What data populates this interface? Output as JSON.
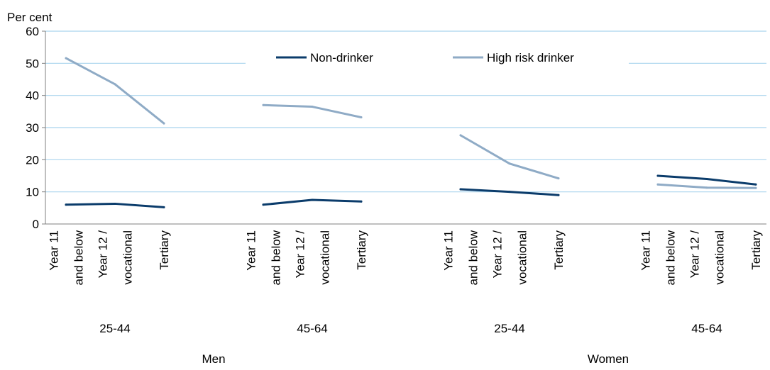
{
  "chart_data": {
    "type": "line",
    "ylabel": "Per cent",
    "ylim": [
      0,
      60
    ],
    "yticks": [
      "0",
      "10",
      "20",
      "30",
      "40",
      "50",
      "60"
    ],
    "grid": true,
    "legend_position": "top",
    "groups": [
      {
        "sex": "Men",
        "age": "25-44",
        "categories": [
          "Year 11 and below",
          "Year 12 / vocational",
          "Tertiary"
        ],
        "category_lines": [
          [
            "Year 11",
            "and below"
          ],
          [
            "Year 12 /",
            "vocational"
          ],
          [
            "Tertiary"
          ]
        ]
      },
      {
        "sex": "Men",
        "age": "45-64",
        "categories": [
          "Year 11 and below",
          "Year 12 / vocational",
          "Tertiary"
        ],
        "category_lines": [
          [
            "Year 11",
            "and below"
          ],
          [
            "Year 12 /",
            "vocational"
          ],
          [
            "Tertiary"
          ]
        ]
      },
      {
        "sex": "Women",
        "age": "25-44",
        "categories": [
          "Year 11 and below",
          "Year 12 / vocational",
          "Tertiary"
        ],
        "category_lines": [
          [
            "Year 11",
            "and below"
          ],
          [
            "Year 12 /",
            "vocational"
          ],
          [
            "Tertiary"
          ]
        ]
      },
      {
        "sex": "Women",
        "age": "45-64",
        "categories": [
          "Year 11 and below",
          "Year 12 / vocational",
          "Tertiary"
        ],
        "category_lines": [
          [
            "Year 11",
            "and below"
          ],
          [
            "Year 12 /",
            "vocational"
          ],
          [
            "Tertiary"
          ]
        ]
      }
    ],
    "sex_labels": [
      "Men",
      "Women"
    ],
    "series": [
      {
        "name": "Non-drinker",
        "color": "#0b3c6b",
        "values": [
          [
            6.0,
            6.3,
            5.2
          ],
          [
            6.0,
            7.5,
            7.0
          ],
          [
            10.8,
            10.0,
            9.0
          ],
          [
            15.0,
            14.0,
            12.3
          ]
        ]
      },
      {
        "name": "High risk drinker",
        "color": "#8fabc6",
        "values": [
          [
            51.6,
            43.5,
            31.3
          ],
          [
            37.0,
            36.5,
            33.2
          ],
          [
            27.6,
            18.8,
            14.2
          ],
          [
            12.3,
            11.3,
            11.2
          ]
        ]
      }
    ],
    "colors": {
      "grid": "#a9d4ee",
      "axis": "#7f7f7f"
    }
  }
}
